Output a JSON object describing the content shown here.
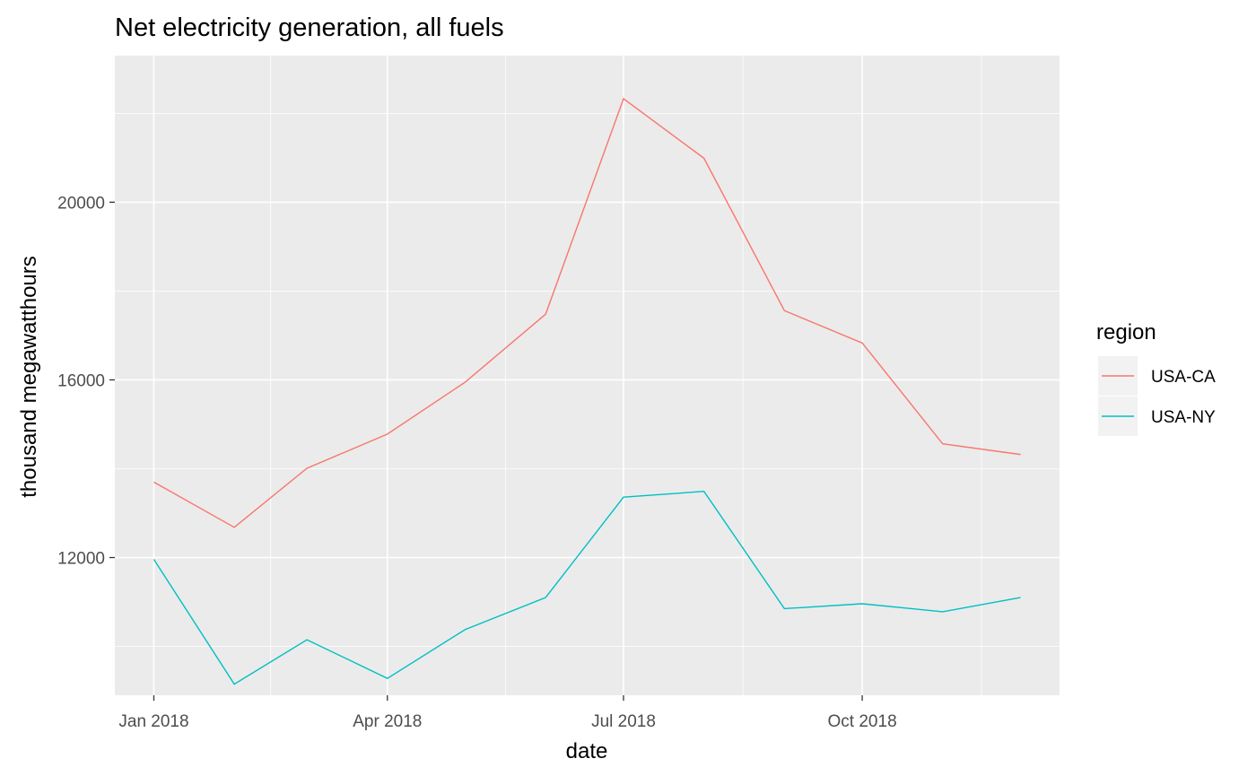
{
  "chart_data": {
    "type": "line",
    "title": "Net electricity generation, all fuels",
    "xlabel": "date",
    "ylabel": "thousand megawatthours",
    "x": [
      "2018-01",
      "2018-02",
      "2018-03",
      "2018-04",
      "2018-05",
      "2018-06",
      "2018-07",
      "2018-08",
      "2018-09",
      "2018-10",
      "2018-11",
      "2018-12"
    ],
    "xticks": [
      {
        "value": "2018-01",
        "label": "Jan 2018"
      },
      {
        "value": "2018-04",
        "label": "Apr 2018"
      },
      {
        "value": "2018-07",
        "label": "Jul 2018"
      },
      {
        "value": "2018-10",
        "label": "Oct 2018"
      }
    ],
    "yticks": [
      12000,
      16000,
      20000
    ],
    "ylim": [
      8900,
      23300
    ],
    "grid": true,
    "series": [
      {
        "name": "USA-CA",
        "color": "#F8766D",
        "values": [
          13700,
          12680,
          14010,
          14780,
          15950,
          17480,
          22330,
          20990,
          17560,
          16830,
          14560,
          14320
        ]
      },
      {
        "name": "USA-NY",
        "color": "#00BFC4",
        "values": [
          11960,
          9150,
          10150,
          9280,
          10380,
          11100,
          13360,
          13490,
          10850,
          10960,
          10780,
          11100
        ]
      }
    ],
    "legend": {
      "title": "region",
      "position": "right"
    }
  }
}
